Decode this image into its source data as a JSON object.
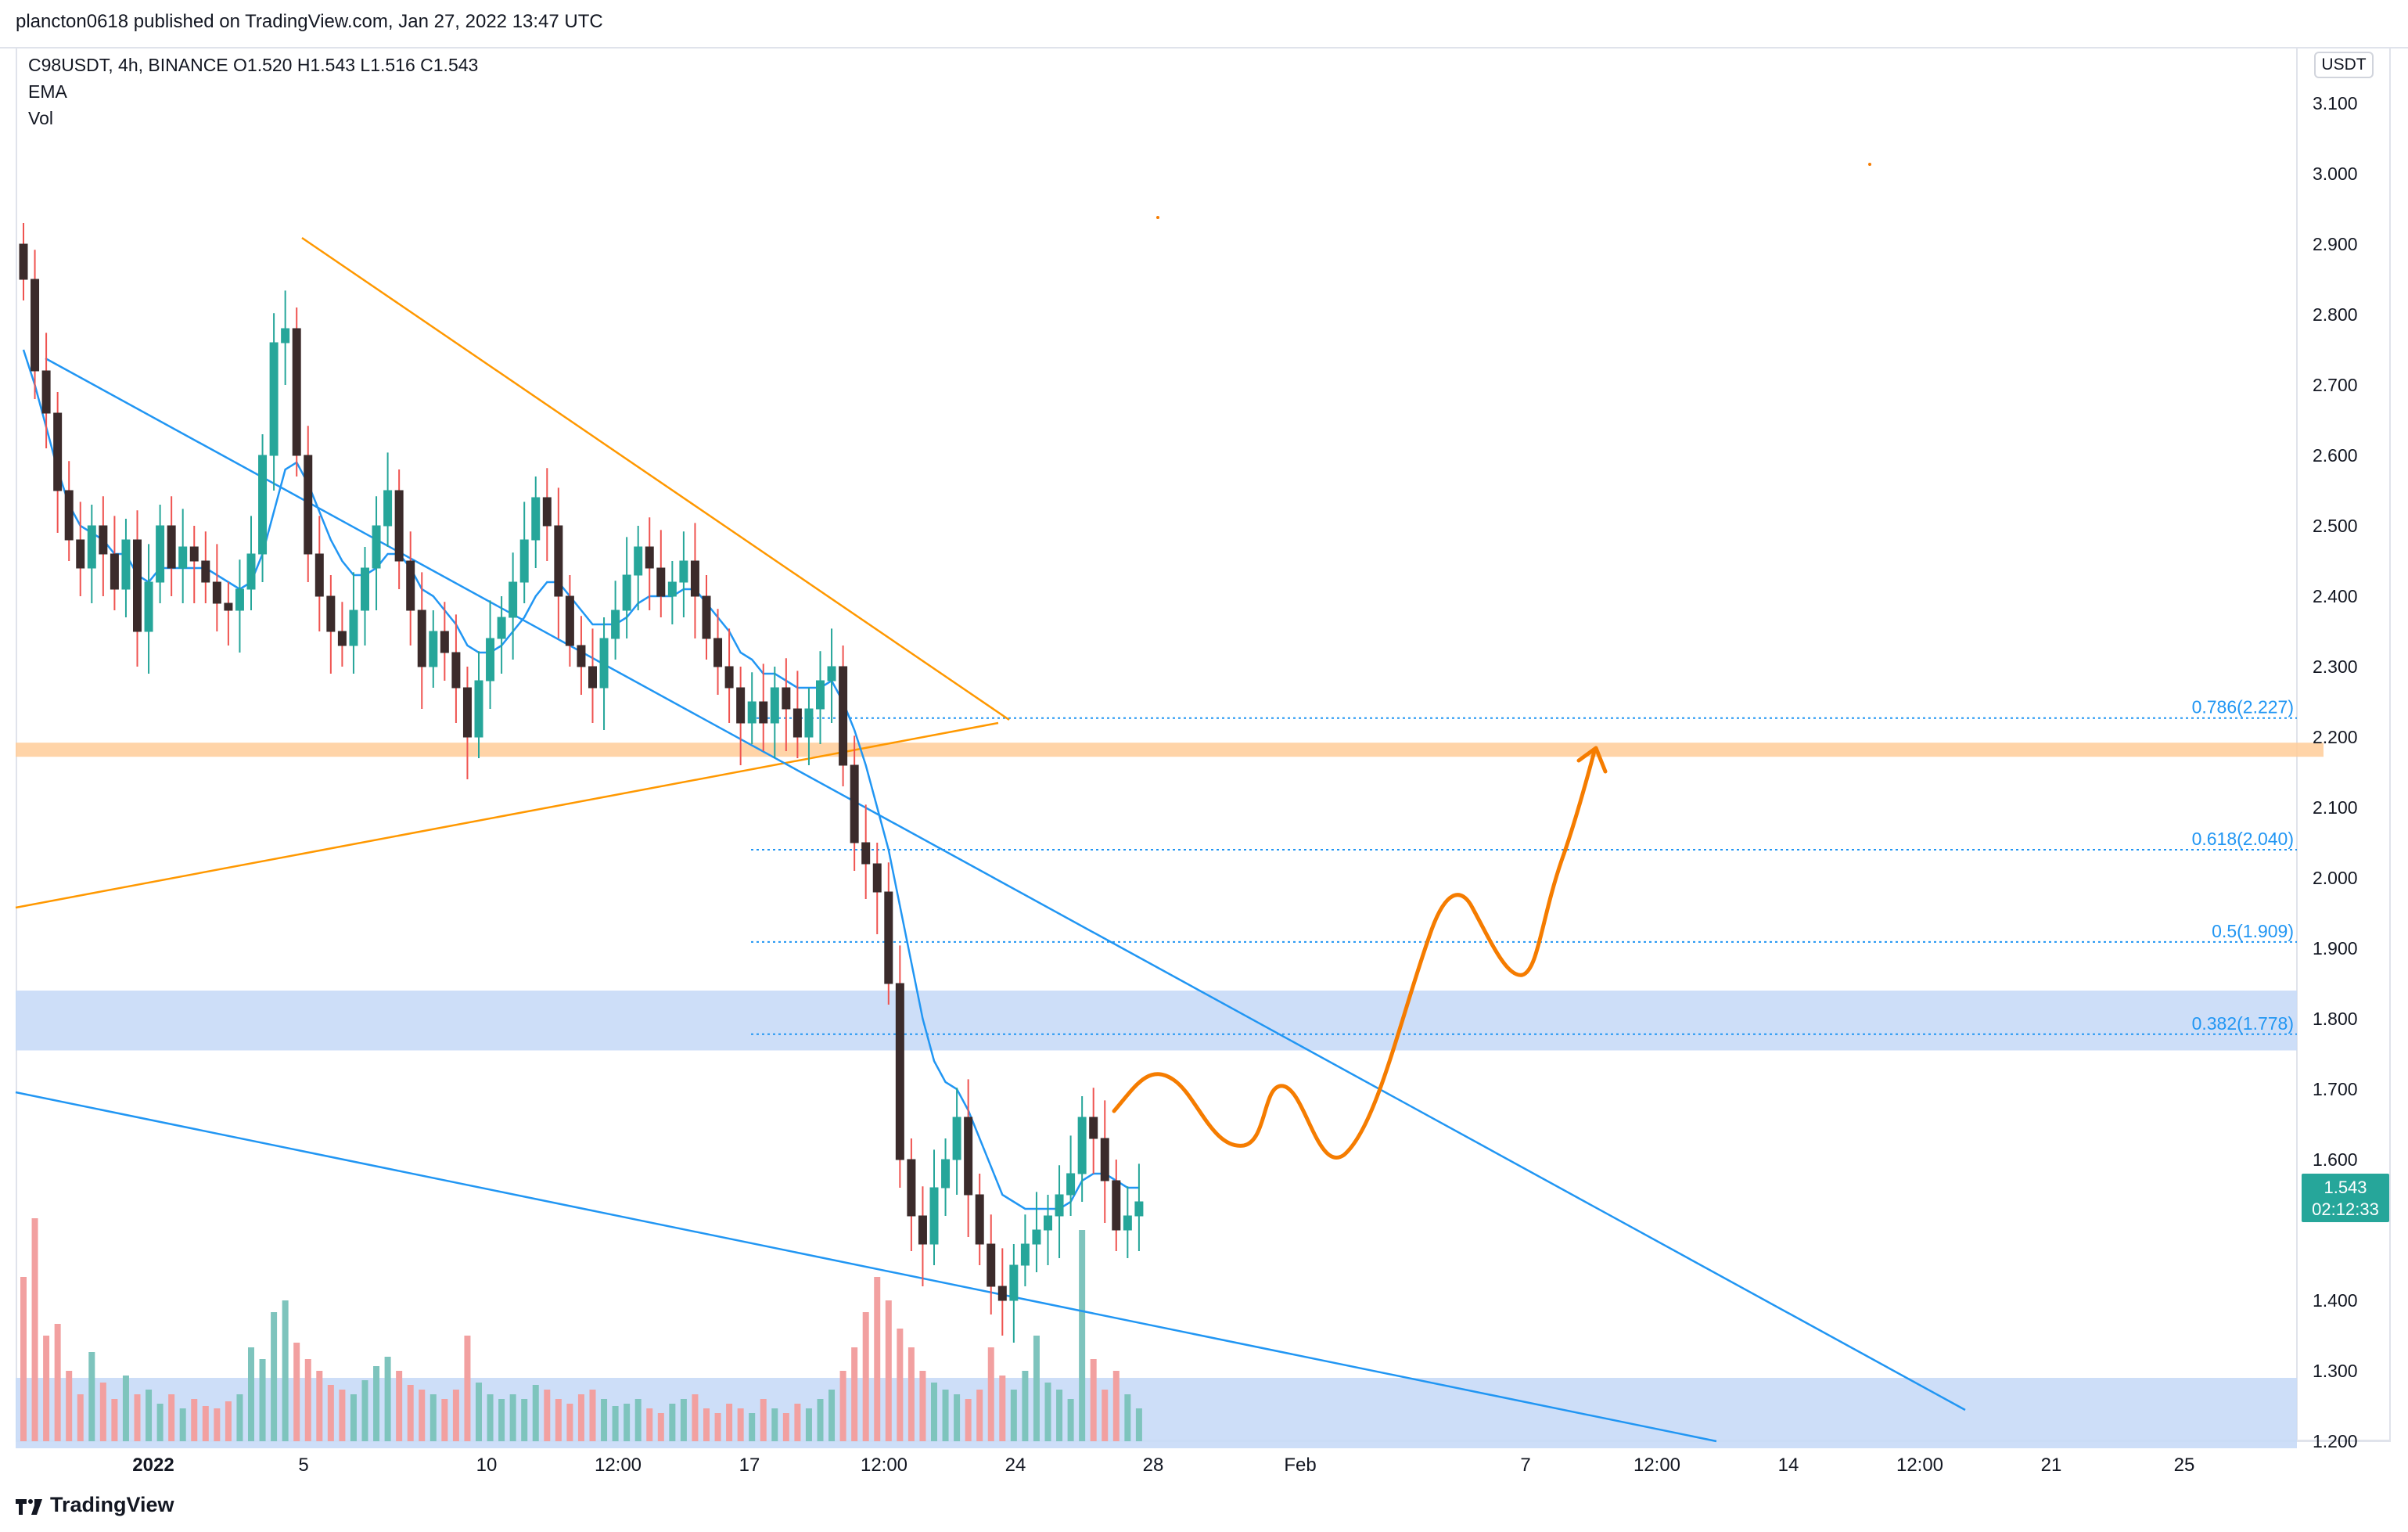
{
  "header": {
    "published_text": "plancton0618 published on TradingView.com, Jan 27, 2022 13:47 UTC"
  },
  "legend": {
    "symbol_line": "C98USDT, 4h, BINANCE  O1.520  H1.543  L1.516  C1.543",
    "ema": "EMA",
    "vol": "Vol"
  },
  "price_axis": {
    "currency": "USDT",
    "ticks": [
      "3.100",
      "3.000",
      "2.900",
      "2.800",
      "2.700",
      "2.600",
      "2.500",
      "2.400",
      "2.300",
      "2.200",
      "2.100",
      "2.000",
      "1.900",
      "1.800",
      "1.700",
      "1.600",
      "1.400",
      "1.300",
      "1.200"
    ]
  },
  "time_axis": {
    "ticks": [
      "2022",
      "5",
      "10",
      "12:00",
      "17",
      "12:00",
      "24",
      "28",
      "Feb",
      "7",
      "12:00",
      "14",
      "12:00",
      "21",
      "25"
    ]
  },
  "price_tag": {
    "price": "1.543",
    "countdown": "02:12:33"
  },
  "footer": {
    "brand": "TradingView"
  },
  "colors": {
    "up": "#26a69a",
    "down": "#ef5350",
    "ema": "#2196f3",
    "trend_orange": "#ff9800",
    "projection": "#f57c00",
    "trend_blue": "#2196f3"
  },
  "chart_data": {
    "type": "candlestick",
    "symbol": "C98USDT",
    "interval": "4h",
    "exchange": "BINANCE",
    "ylim": [
      1.18,
      3.18
    ],
    "ohlc_last": {
      "open": 1.52,
      "high": 1.543,
      "low": 1.516,
      "close": 1.543
    },
    "fib_levels": [
      {
        "label": "0.786(2.227)",
        "value": 2.227
      },
      {
        "label": "0.618(2.040)",
        "value": 2.04
      },
      {
        "label": "0.5(1.909)",
        "value": 1.909
      },
      {
        "label": "0.382(1.778)",
        "value": 1.778
      }
    ],
    "zones": [
      {
        "name": "resistance",
        "low": 2.172,
        "high": 2.192,
        "color": "#ffcc99"
      },
      {
        "name": "supply",
        "low": 1.755,
        "high": 1.84,
        "color": "#c8daf7"
      },
      {
        "name": "demand",
        "low": 1.19,
        "high": 1.29,
        "color": "#c8daf7"
      }
    ],
    "closes": [
      2.85,
      2.72,
      2.66,
      2.55,
      2.48,
      2.44,
      2.5,
      2.46,
      2.41,
      2.48,
      2.35,
      2.42,
      2.5,
      2.44,
      2.47,
      2.45,
      2.42,
      2.39,
      2.38,
      2.41,
      2.46,
      2.6,
      2.76,
      2.78,
      2.6,
      2.46,
      2.4,
      2.35,
      2.33,
      2.38,
      2.44,
      2.5,
      2.55,
      2.45,
      2.38,
      2.3,
      2.35,
      2.32,
      2.27,
      2.2,
      2.28,
      2.34,
      2.37,
      2.42,
      2.48,
      2.54,
      2.5,
      2.4,
      2.33,
      2.3,
      2.27,
      2.34,
      2.38,
      2.43,
      2.47,
      2.44,
      2.4,
      2.42,
      2.45,
      2.4,
      2.34,
      2.3,
      2.27,
      2.22,
      2.25,
      2.22,
      2.27,
      2.24,
      2.2,
      2.24,
      2.28,
      2.3,
      2.16,
      2.05,
      2.02,
      1.98,
      1.85,
      1.6,
      1.52,
      1.48,
      1.56,
      1.6,
      1.66,
      1.55,
      1.48,
      1.42,
      1.4,
      1.45,
      1.48,
      1.5,
      1.52,
      1.55,
      1.58,
      1.66,
      1.63,
      1.57,
      1.5,
      1.52,
      1.54
    ],
    "volumes": [
      70,
      95,
      45,
      50,
      30,
      20,
      38,
      25,
      18,
      28,
      20,
      22,
      16,
      20,
      14,
      18,
      15,
      14,
      17,
      20,
      40,
      35,
      55,
      60,
      42,
      35,
      30,
      24,
      22,
      20,
      26,
      32,
      36,
      30,
      24,
      22,
      20,
      18,
      22,
      45,
      25,
      20,
      18,
      20,
      18,
      24,
      22,
      18,
      16,
      20,
      22,
      18,
      15,
      16,
      18,
      14,
      12,
      16,
      18,
      20,
      14,
      12,
      16,
      14,
      12,
      18,
      14,
      12,
      16,
      14,
      18,
      22,
      30,
      40,
      55,
      70,
      60,
      48,
      40,
      30,
      25,
      22,
      20,
      18,
      22,
      40,
      28,
      22,
      30,
      45,
      25,
      22,
      18,
      90,
      35,
      22,
      30,
      20,
      14
    ],
    "ema": [
      2.75,
      2.7,
      2.64,
      2.58,
      2.53,
      2.5,
      2.49,
      2.48,
      2.46,
      2.46,
      2.43,
      2.42,
      2.44,
      2.44,
      2.44,
      2.44,
      2.44,
      2.43,
      2.42,
      2.41,
      2.42,
      2.46,
      2.52,
      2.58,
      2.59,
      2.56,
      2.52,
      2.48,
      2.45,
      2.43,
      2.43,
      2.44,
      2.46,
      2.46,
      2.44,
      2.41,
      2.4,
      2.38,
      2.36,
      2.33,
      2.32,
      2.32,
      2.33,
      2.35,
      2.37,
      2.4,
      2.42,
      2.42,
      2.4,
      2.38,
      2.36,
      2.36,
      2.36,
      2.37,
      2.39,
      2.4,
      2.4,
      2.4,
      2.41,
      2.41,
      2.39,
      2.37,
      2.35,
      2.32,
      2.31,
      2.29,
      2.29,
      2.28,
      2.27,
      2.27,
      2.27,
      2.28,
      2.25,
      2.21,
      2.16,
      2.1,
      2.04,
      1.96,
      1.88,
      1.8,
      1.74,
      1.71,
      1.7,
      1.67,
      1.63,
      1.59,
      1.55,
      1.54,
      1.53,
      1.53,
      1.53,
      1.53,
      1.54,
      1.57,
      1.58,
      1.58,
      1.57,
      1.56,
      1.56
    ]
  }
}
